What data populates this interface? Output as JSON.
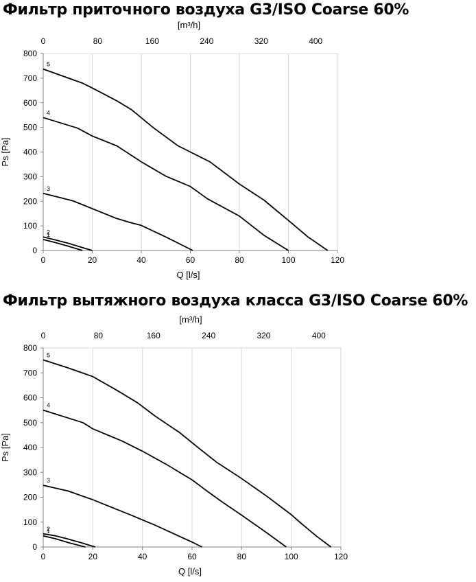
{
  "chart_data": [
    {
      "type": "line",
      "title": "Фильтр приточного воздуха G3/ISO Coarse 60%",
      "xlabel": "Q [l/s]",
      "ylabel": "Ps [Pa]",
      "x2label": "[m³/h]",
      "xlim": [
        0,
        120
      ],
      "ylim": [
        0,
        800
      ],
      "x_ticks": [
        0,
        20,
        40,
        60,
        80,
        100,
        120
      ],
      "y_ticks": [
        0,
        100,
        200,
        300,
        400,
        500,
        600,
        700,
        800
      ],
      "x2_ticks": [
        0,
        80,
        160,
        240,
        320,
        400
      ],
      "x2_per_x": 3.6,
      "grid": "vertical",
      "series": [
        {
          "name": "1",
          "x": [
            0,
            5,
            10,
            16
          ],
          "y": [
            45,
            32,
            18,
            0
          ]
        },
        {
          "name": "2",
          "x": [
            0,
            5,
            10,
            15,
            20
          ],
          "y": [
            55,
            43,
            30,
            15,
            0
          ]
        },
        {
          "name": "3",
          "x": [
            0,
            12,
            20,
            30,
            35,
            40,
            50,
            61
          ],
          "y": [
            232,
            202,
            170,
            130,
            115,
            102,
            55,
            0
          ]
        },
        {
          "name": "4",
          "x": [
            0,
            14,
            20,
            30,
            40,
            50,
            60,
            67,
            80,
            90,
            100
          ],
          "y": [
            540,
            497,
            465,
            425,
            360,
            302,
            260,
            210,
            140,
            62,
            0
          ]
        },
        {
          "name": "5",
          "x": [
            0,
            16,
            20,
            30,
            36,
            45,
            55,
            68,
            80,
            90,
            100,
            108,
            116
          ],
          "y": [
            737,
            680,
            660,
            608,
            572,
            498,
            425,
            360,
            270,
            205,
            122,
            55,
            0
          ]
        }
      ]
    },
    {
      "type": "line",
      "title": "Фильтр вытяжного воздуха класса G3/ISO Coarse 60%",
      "xlabel": "Q [l/s]",
      "ylabel": "Ps [Pa]",
      "x2label": "[m³/h]",
      "xlim": [
        0,
        120
      ],
      "ylim": [
        0,
        800
      ],
      "x_ticks": [
        0,
        20,
        40,
        60,
        80,
        100,
        120
      ],
      "y_ticks": [
        0,
        100,
        200,
        300,
        400,
        500,
        600,
        700,
        800
      ],
      "x2_ticks": [
        0,
        80,
        160,
        240,
        320,
        400
      ],
      "x2_per_x": 3.6,
      "grid": "vertical",
      "series": [
        {
          "name": "1",
          "x": [
            0,
            5,
            10,
            17
          ],
          "y": [
            45,
            33,
            18,
            0
          ]
        },
        {
          "name": "2",
          "x": [
            0,
            5,
            10,
            15,
            21
          ],
          "y": [
            53,
            45,
            32,
            18,
            0
          ]
        },
        {
          "name": "3",
          "x": [
            0,
            10,
            20,
            25,
            35,
            45,
            60,
            64
          ],
          "y": [
            248,
            225,
            190,
            170,
            130,
            88,
            20,
            0
          ]
        },
        {
          "name": "4",
          "x": [
            0,
            16,
            20,
            32,
            40,
            50,
            60,
            66,
            72,
            80,
            90,
            98
          ],
          "y": [
            550,
            500,
            475,
            425,
            385,
            330,
            270,
            225,
            182,
            128,
            58,
            0
          ]
        },
        {
          "name": "5",
          "x": [
            0,
            10,
            20,
            30,
            38,
            45,
            55,
            63,
            70,
            80,
            85,
            90,
            100,
            104,
            110,
            116
          ],
          "y": [
            752,
            720,
            685,
            628,
            580,
            527,
            460,
            395,
            340,
            275,
            240,
            205,
            130,
            95,
            45,
            0
          ]
        }
      ]
    }
  ]
}
